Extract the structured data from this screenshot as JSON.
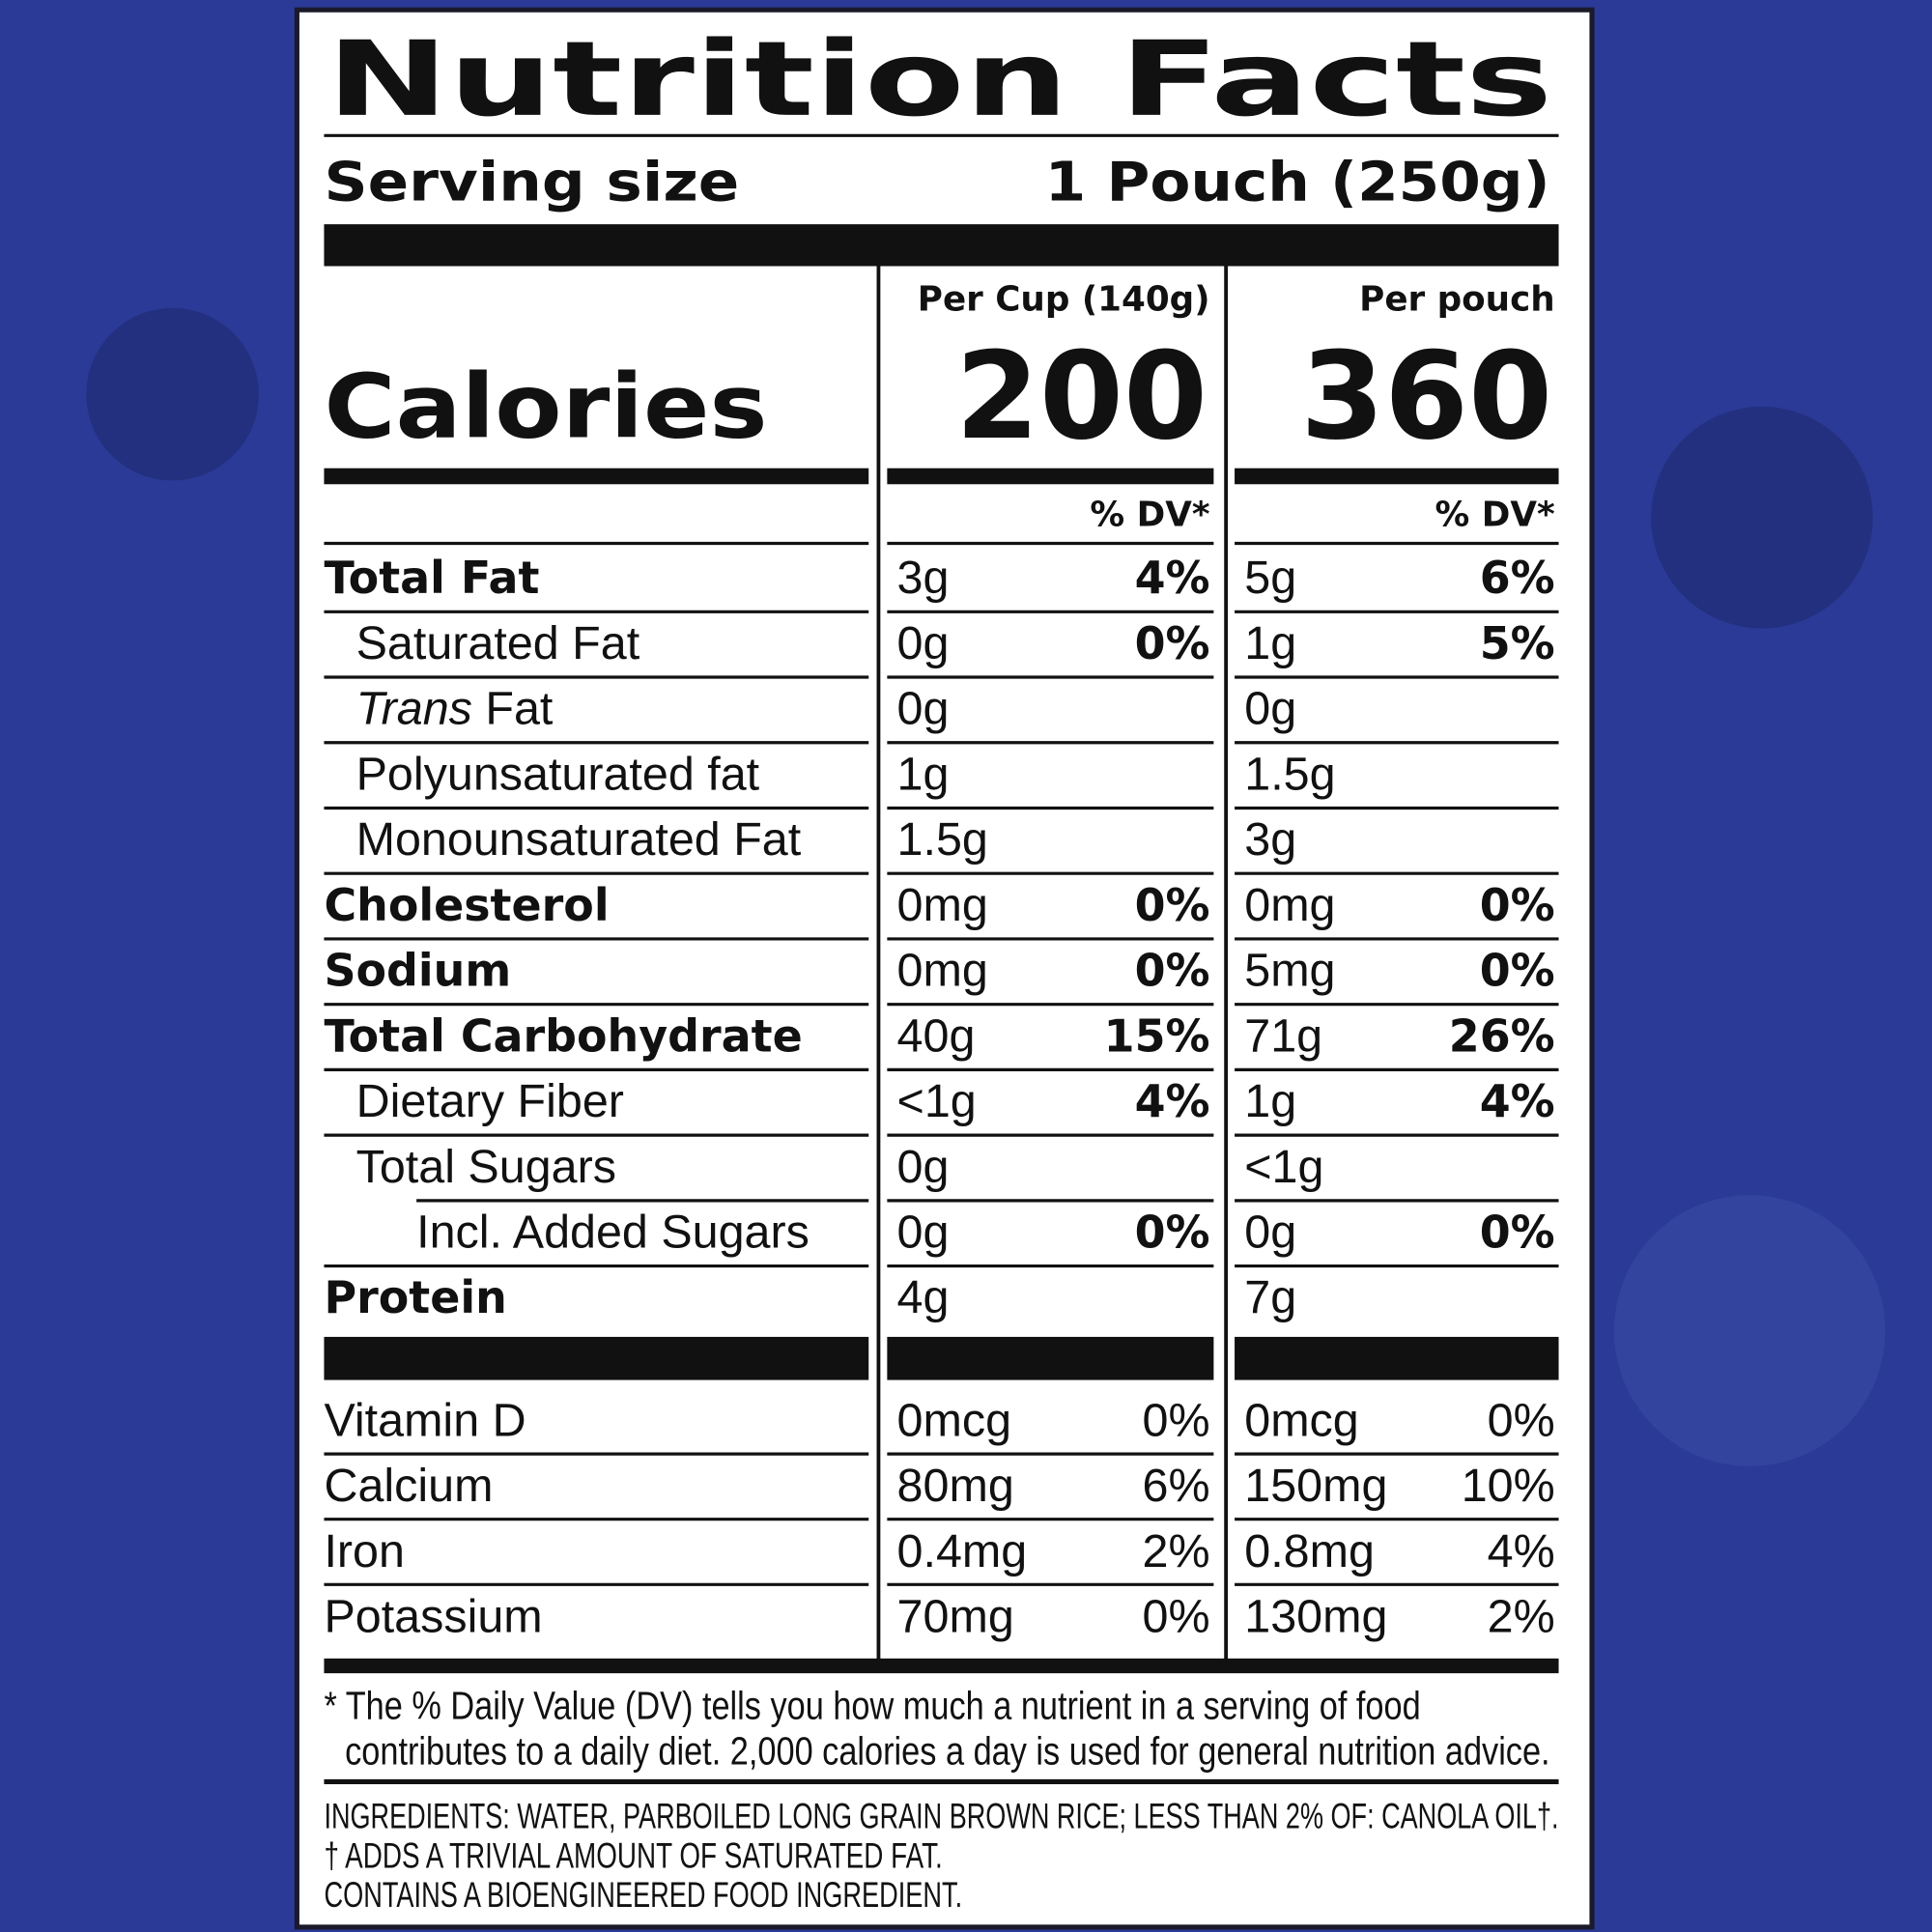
{
  "header": {
    "title": "Nutrition Facts",
    "serving_label": "Serving size",
    "serving_value": "1 Pouch (250g)"
  },
  "calories": {
    "label": "Calories",
    "columns": [
      {
        "heading": "Per Cup (140g)",
        "value": 200,
        "dv_heading": "% DV*"
      },
      {
        "heading": "Per pouch",
        "value": 360,
        "dv_heading": "% DV*"
      }
    ]
  },
  "nutrients": [
    {
      "name": "Total Fat",
      "style": "bold",
      "cup": {
        "amount": "3g",
        "dv": "4%"
      },
      "pouch": {
        "amount": "5g",
        "dv": "6%"
      }
    },
    {
      "name": "Saturated Fat",
      "style": "indent",
      "cup": {
        "amount": "0g",
        "dv": "0%"
      },
      "pouch": {
        "amount": "1g",
        "dv": "5%"
      }
    },
    {
      "name_italic": "Trans",
      "name": "Fat",
      "style": "indent",
      "cup": {
        "amount": "0g"
      },
      "pouch": {
        "amount": "0g"
      }
    },
    {
      "name": "Polyunsaturated fat",
      "style": "indent",
      "cup": {
        "amount": "1g"
      },
      "pouch": {
        "amount": "1.5g"
      }
    },
    {
      "name": "Monounsaturated Fat",
      "style": "indent",
      "cup": {
        "amount": "1.5g"
      },
      "pouch": {
        "amount": "3g"
      }
    },
    {
      "name": "Cholesterol",
      "style": "bold",
      "cup": {
        "amount": "0mg",
        "dv": "0%"
      },
      "pouch": {
        "amount": "0mg",
        "dv": "0%"
      }
    },
    {
      "name": "Sodium",
      "style": "bold",
      "cup": {
        "amount": "0mg",
        "dv": "0%"
      },
      "pouch": {
        "amount": "5mg",
        "dv": "0%"
      }
    },
    {
      "name": "Total Carbohydrate",
      "style": "bold",
      "cup": {
        "amount": "40g",
        "dv": "15%"
      },
      "pouch": {
        "amount": "71g",
        "dv": "26%"
      }
    },
    {
      "name": "Dietary Fiber",
      "style": "indent",
      "cup": {
        "amount": "<1g",
        "dv": "4%"
      },
      "pouch": {
        "amount": "1g",
        "dv": "4%"
      }
    },
    {
      "name": "Total Sugars",
      "style": "indent",
      "cup": {
        "amount": "0g"
      },
      "pouch": {
        "amount": "<1g"
      }
    },
    {
      "name": "Incl. Added Sugars",
      "style": "indent2",
      "cup": {
        "amount": "0g",
        "dv": "0%"
      },
      "pouch": {
        "amount": "0g",
        "dv": "0%"
      }
    },
    {
      "name": "Protein",
      "style": "bold",
      "cup": {
        "amount": "4g"
      },
      "pouch": {
        "amount": "7g"
      }
    }
  ],
  "micronutrients": [
    {
      "name": "Vitamin D",
      "cup": {
        "amount": "0mcg",
        "dv": "0%"
      },
      "pouch": {
        "amount": "0mcg",
        "dv": "0%"
      }
    },
    {
      "name": "Calcium",
      "cup": {
        "amount": "80mg",
        "dv": "6%"
      },
      "pouch": {
        "amount": "150mg",
        "dv": "10%"
      }
    },
    {
      "name": "Iron",
      "cup": {
        "amount": "0.4mg",
        "dv": "2%"
      },
      "pouch": {
        "amount": "0.8mg",
        "dv": "4%"
      }
    },
    {
      "name": "Potassium",
      "cup": {
        "amount": "70mg",
        "dv": "0%"
      },
      "pouch": {
        "amount": "130mg",
        "dv": "2%"
      }
    }
  ],
  "footnote": [
    "* The % Daily Value (DV) tells you how much a nutrient in a serving of food",
    "contributes to a daily diet. 2,000 calories a day is used for general nutrition advice."
  ],
  "ingredients": [
    "INGREDIENTS: WATER, PARBOILED LONG GRAIN BROWN RICE; LESS THAN 2% OF: CANOLA OIL†.",
    "† ADDS A TRIVIAL AMOUNT OF SATURATED FAT.",
    "CONTAINS A BIOENGINEERED FOOD INGREDIENT."
  ]
}
